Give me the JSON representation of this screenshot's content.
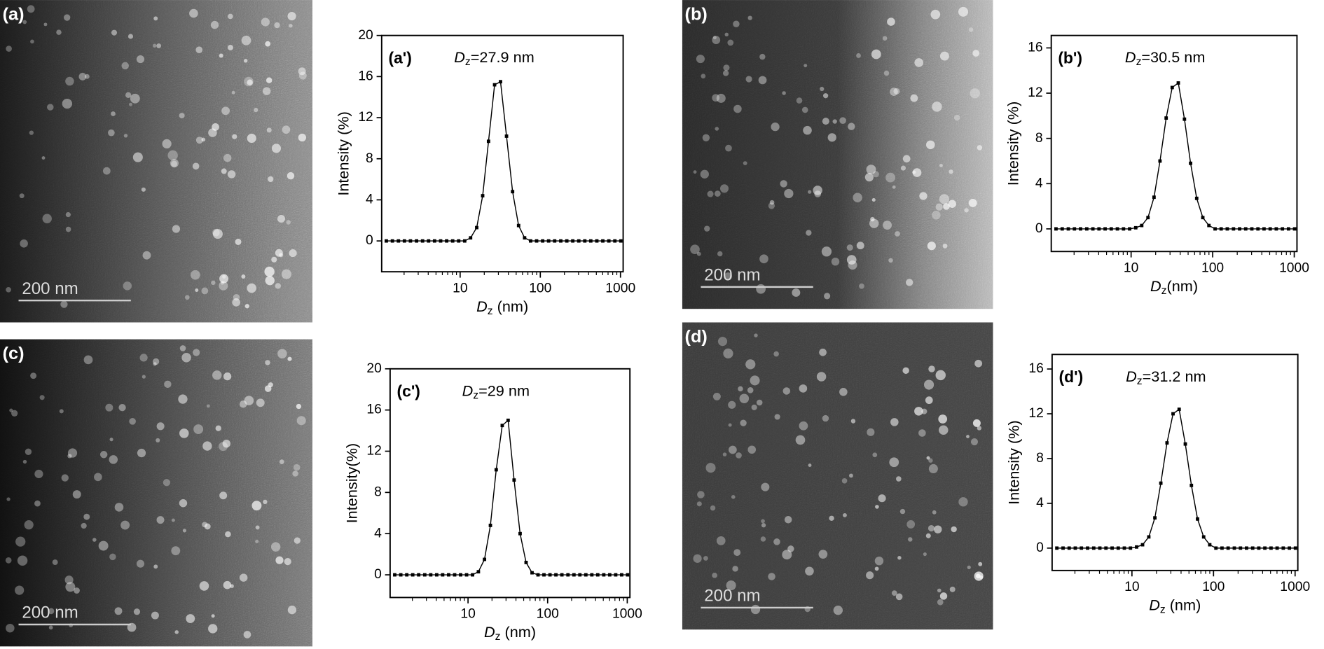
{
  "images": [
    {
      "label": "(a)",
      "scale": "200 nm"
    },
    {
      "label": "(b)",
      "scale": "200 nm"
    },
    {
      "label": "(c)",
      "scale": "200 nm"
    },
    {
      "label": "(d)",
      "scale": "200 nm"
    }
  ],
  "chart_data": [
    {
      "type": "line",
      "panel": "(a')",
      "annotation": [
        "D",
        "z",
        "=27.9 nm"
      ],
      "ylabel": "Intensity (%)",
      "xlabel": [
        "D",
        "z",
        " (nm)"
      ],
      "xlog": true,
      "color": "#000000",
      "xlim": [
        1.05,
        1080
      ],
      "xticks": [
        10,
        100,
        1000
      ],
      "ylim": [
        -3,
        20
      ],
      "yticks": [
        0,
        4,
        8,
        12,
        16,
        20
      ],
      "series": [
        {
          "name": null,
          "color": "#000000",
          "x": [
            1.2,
            1.43,
            1.7,
            2.02,
            2.4,
            2.86,
            3.4,
            4.04,
            4.8,
            5.71,
            6.79,
            8.07,
            9.59,
            11.4,
            13.5,
            16.1,
            19.1,
            22.6,
            26.9,
            31.9,
            37.9,
            45.1,
            53.6,
            63.7,
            75.7,
            89.9,
            107,
            127,
            151,
            180,
            214,
            254,
            302,
            359,
            426,
            507,
            602,
            716,
            851,
            1010
          ],
          "values": [
            0,
            0,
            0,
            0,
            0,
            0,
            0,
            0,
            0,
            0,
            0,
            0,
            0,
            0,
            0.3,
            1.3,
            4.4,
            9.7,
            15.2,
            15.5,
            10.2,
            4.8,
            1.5,
            0.3,
            0,
            0,
            0,
            0,
            0,
            0,
            0,
            0,
            0,
            0,
            0,
            0,
            0,
            0,
            0,
            0
          ]
        }
      ]
    },
    {
      "type": "line",
      "panel": "(b')",
      "annotation": [
        "D",
        "z",
        "=30.5 nm"
      ],
      "ylabel": "Intensity (%)",
      "xlabel": [
        "D",
        "z",
        "(nm)"
      ],
      "xlog": true,
      "color": "#000000",
      "xlim": [
        1.05,
        1080
      ],
      "xticks": [
        10,
        100,
        1000
      ],
      "ylim": [
        -2,
        17.1
      ],
      "yticks": [
        0,
        4,
        8,
        12,
        16
      ],
      "series": [
        {
          "name": null,
          "color": "#000000",
          "x": [
            1.2,
            1.43,
            1.7,
            2.02,
            2.4,
            2.86,
            3.4,
            4.04,
            4.8,
            5.71,
            6.79,
            8.07,
            9.59,
            11.4,
            13.5,
            16.1,
            19.1,
            22.6,
            26.9,
            31.9,
            37.9,
            45.1,
            53.6,
            63.7,
            75.7,
            89.9,
            107,
            127,
            151,
            180,
            214,
            254,
            302,
            359,
            426,
            507,
            602,
            716,
            851,
            1010
          ],
          "values": [
            0,
            0,
            0,
            0,
            0,
            0,
            0,
            0,
            0,
            0,
            0,
            0,
            0,
            0.1,
            0.3,
            1.0,
            2.8,
            6.0,
            9.8,
            12.5,
            12.9,
            9.7,
            5.8,
            2.7,
            1.0,
            0.3,
            0,
            0,
            0,
            0,
            0,
            0,
            0,
            0,
            0,
            0,
            0,
            0,
            0,
            0
          ]
        }
      ]
    },
    {
      "type": "line",
      "panel": "(c')",
      "annotation": [
        "D",
        "z",
        "=29 nm"
      ],
      "ylabel": "Intensity(%)",
      "xlabel": [
        "D",
        "z",
        " (nm)"
      ],
      "xlog": true,
      "color": "#000000",
      "xlim": [
        1.05,
        1080
      ],
      "xticks": [
        10,
        100,
        1000
      ],
      "ylim": [
        -2.2,
        20
      ],
      "yticks": [
        0,
        4,
        8,
        12,
        16,
        20
      ],
      "series": [
        {
          "name": null,
          "color": "#000000",
          "x": [
            1.2,
            1.43,
            1.7,
            2.02,
            2.4,
            2.86,
            3.4,
            4.04,
            4.8,
            5.71,
            6.79,
            8.07,
            9.59,
            11.4,
            13.5,
            16.1,
            19.1,
            22.6,
            26.9,
            31.9,
            37.9,
            45.1,
            53.6,
            63.7,
            75.7,
            89.9,
            107,
            127,
            151,
            180,
            214,
            254,
            302,
            359,
            426,
            507,
            602,
            716,
            851,
            1010
          ],
          "values": [
            0,
            0,
            0,
            0,
            0,
            0,
            0,
            0,
            0,
            0,
            0,
            0,
            0,
            0,
            0.3,
            1.5,
            4.8,
            10.2,
            14.5,
            15.0,
            9.2,
            4.0,
            1.2,
            0.2,
            0,
            0,
            0,
            0,
            0,
            0,
            0,
            0,
            0,
            0,
            0,
            0,
            0,
            0,
            0,
            0
          ]
        }
      ]
    },
    {
      "type": "line",
      "panel": "(d')",
      "annotation": [
        "D",
        "z",
        "=31.2 nm"
      ],
      "ylabel": "Intensity (%)",
      "xlabel": [
        "D",
        "z",
        " (nm)"
      ],
      "xlog": true,
      "color": "#000000",
      "xlim": [
        1.05,
        1080
      ],
      "xticks": [
        10,
        100,
        1000
      ],
      "ylim": [
        -2,
        17.3
      ],
      "yticks": [
        0,
        4,
        8,
        12,
        16
      ],
      "series": [
        {
          "name": null,
          "color": "#000000",
          "x": [
            1.2,
            1.43,
            1.7,
            2.02,
            2.4,
            2.86,
            3.4,
            4.04,
            4.8,
            5.71,
            6.79,
            8.07,
            9.59,
            11.4,
            13.5,
            16.1,
            19.1,
            22.6,
            26.9,
            31.9,
            37.9,
            45.1,
            53.6,
            63.7,
            75.7,
            89.9,
            107,
            127,
            151,
            180,
            214,
            254,
            302,
            359,
            426,
            507,
            602,
            716,
            851,
            1010
          ],
          "values": [
            0,
            0,
            0,
            0,
            0,
            0,
            0,
            0,
            0,
            0,
            0,
            0,
            0,
            0.1,
            0.3,
            1.0,
            2.7,
            5.8,
            9.4,
            12.0,
            12.4,
            9.3,
            5.6,
            2.6,
            1.0,
            0.3,
            0,
            0,
            0,
            0,
            0,
            0,
            0,
            0,
            0,
            0,
            0,
            0,
            0,
            0
          ]
        }
      ]
    }
  ]
}
